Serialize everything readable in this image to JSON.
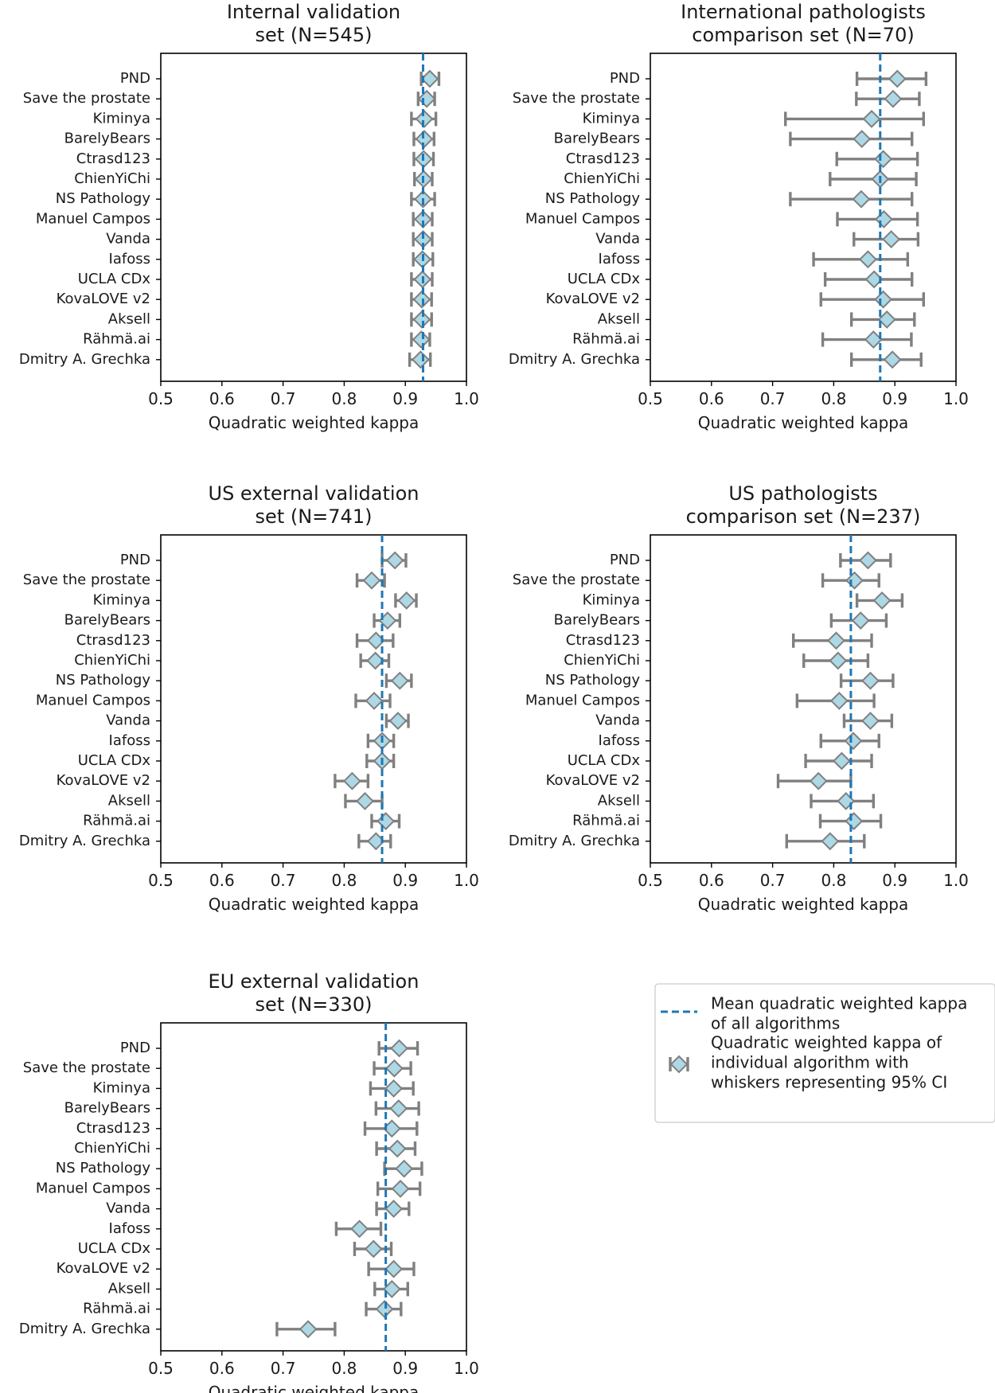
{
  "chart_data": [
    {
      "type": "forest",
      "title_lines": [
        "Internal validation",
        "set (N=545)"
      ],
      "xlabel": "Quadratic weighted kappa",
      "xlim": [
        0.5,
        1.0
      ],
      "xticks": [
        "0.5",
        "0.6",
        "0.7",
        "0.8",
        "0.9",
        "1.0"
      ],
      "mean": 0.929,
      "algorithms": [
        "PND",
        "Save the prostate",
        "Kiminya",
        "BarelyBears",
        "Ctrasd123",
        "ChienYiChi",
        "NS Pathology",
        "Manuel Campos",
        "Vanda",
        "Iafoss",
        "UCLA CDx",
        "KovaLOVE v2",
        "Aksell",
        "Rähmä.ai",
        "Dmitry A. Grechka"
      ],
      "estimates": [
        0.94,
        0.935,
        0.931,
        0.931,
        0.93,
        0.93,
        0.929,
        0.929,
        0.929,
        0.928,
        0.928,
        0.927,
        0.927,
        0.926,
        0.925
      ],
      "ci_low": [
        0.926,
        0.921,
        0.91,
        0.914,
        0.914,
        0.915,
        0.91,
        0.913,
        0.913,
        0.913,
        0.91,
        0.91,
        0.91,
        0.91,
        0.907
      ],
      "ci_high": [
        0.955,
        0.948,
        0.95,
        0.947,
        0.946,
        0.944,
        0.948,
        0.944,
        0.944,
        0.945,
        0.944,
        0.943,
        0.943,
        0.94,
        0.941
      ]
    },
    {
      "type": "forest",
      "title_lines": [
        "International pathologists",
        "comparison set (N=70)"
      ],
      "xlabel": "Quadratic weighted kappa",
      "xlim": [
        0.5,
        1.0
      ],
      "xticks": [
        "0.5",
        "0.6",
        "0.7",
        "0.8",
        "0.9",
        "1.0"
      ],
      "mean": 0.876,
      "algorithms": [
        "PND",
        "Save the prostate",
        "Kiminya",
        "BarelyBears",
        "Ctrasd123",
        "ChienYiChi",
        "NS Pathology",
        "Manuel Campos",
        "Vanda",
        "Iafoss",
        "UCLA CDx",
        "KovaLOVE v2",
        "Aksell",
        "Rähmä.ai",
        "Dmitry A. Grechka"
      ],
      "estimates": [
        0.904,
        0.897,
        0.862,
        0.846,
        0.881,
        0.876,
        0.845,
        0.882,
        0.894,
        0.856,
        0.866,
        0.881,
        0.887,
        0.865,
        0.896
      ],
      "ci_low": [
        0.838,
        0.837,
        0.721,
        0.729,
        0.805,
        0.794,
        0.729,
        0.806,
        0.833,
        0.767,
        0.786,
        0.779,
        0.829,
        0.782,
        0.829
      ],
      "ci_high": [
        0.951,
        0.94,
        0.947,
        0.928,
        0.937,
        0.935,
        0.928,
        0.937,
        0.938,
        0.921,
        0.928,
        0.947,
        0.932,
        0.927,
        0.943
      ]
    },
    {
      "type": "forest",
      "title_lines": [
        "US external validation",
        "set (N=741)"
      ],
      "xlabel": "Quadratic weighted kappa",
      "xlim": [
        0.5,
        1.0
      ],
      "xticks": [
        "0.5",
        "0.6",
        "0.7",
        "0.8",
        "0.9",
        "1.0"
      ],
      "mean": 0.862,
      "algorithms": [
        "PND",
        "Save the prostate",
        "Kiminya",
        "BarelyBears",
        "Ctrasd123",
        "ChienYiChi",
        "NS Pathology",
        "Manuel Campos",
        "Vanda",
        "Iafoss",
        "UCLA CDx",
        "KovaLOVE v2",
        "Aksell",
        "Rähmä.ai",
        "Dmitry A. Grechka"
      ],
      "estimates": [
        0.883,
        0.845,
        0.902,
        0.871,
        0.852,
        0.851,
        0.891,
        0.849,
        0.888,
        0.862,
        0.862,
        0.813,
        0.834,
        0.868,
        0.852
      ],
      "ci_low": [
        0.862,
        0.821,
        0.884,
        0.849,
        0.821,
        0.827,
        0.869,
        0.819,
        0.869,
        0.839,
        0.837,
        0.785,
        0.802,
        0.845,
        0.824
      ],
      "ci_high": [
        0.901,
        0.866,
        0.918,
        0.891,
        0.88,
        0.873,
        0.91,
        0.875,
        0.905,
        0.881,
        0.881,
        0.839,
        0.862,
        0.89,
        0.876
      ]
    },
    {
      "type": "forest",
      "title_lines": [
        "US pathologists",
        "comparison set (N=237)"
      ],
      "xlabel": "Quadratic weighted kappa",
      "xlim": [
        0.5,
        1.0
      ],
      "xticks": [
        "0.5",
        "0.6",
        "0.7",
        "0.8",
        "0.9",
        "1.0"
      ],
      "mean": 0.828,
      "algorithms": [
        "PND",
        "Save the prostate",
        "Kiminya",
        "BarelyBears",
        "Ctrasd123",
        "ChienYiChi",
        "NS Pathology",
        "Manuel Campos",
        "Vanda",
        "Iafoss",
        "UCLA CDx",
        "KovaLOVE v2",
        "Aksell",
        "Rähmä.ai",
        "Dmitry A. Grechka"
      ],
      "estimates": [
        0.856,
        0.834,
        0.879,
        0.844,
        0.804,
        0.807,
        0.86,
        0.809,
        0.86,
        0.832,
        0.813,
        0.775,
        0.82,
        0.833,
        0.794
      ],
      "ci_low": [
        0.811,
        0.782,
        0.838,
        0.796,
        0.734,
        0.751,
        0.812,
        0.74,
        0.817,
        0.779,
        0.754,
        0.709,
        0.763,
        0.778,
        0.723
      ],
      "ci_high": [
        0.893,
        0.874,
        0.912,
        0.886,
        0.862,
        0.856,
        0.897,
        0.866,
        0.895,
        0.874,
        0.862,
        0.828,
        0.865,
        0.877,
        0.85
      ]
    },
    {
      "type": "forest",
      "title_lines": [
        "EU external validation",
        "set (N=330)"
      ],
      "xlabel": "Quadratic weighted kappa",
      "xlim": [
        0.5,
        1.0
      ],
      "xticks": [
        "0.5",
        "0.6",
        "0.7",
        "0.8",
        "0.9",
        "1.0"
      ],
      "mean": 0.868,
      "algorithms": [
        "PND",
        "Save the prostate",
        "Kiminya",
        "BarelyBears",
        "Ctrasd123",
        "ChienYiChi",
        "NS Pathology",
        "Manuel Campos",
        "Vanda",
        "Iafoss",
        "UCLA CDx",
        "KovaLOVE v2",
        "Aksell",
        "Rähmä.ai",
        "Dmitry A. Grechka"
      ],
      "estimates": [
        0.89,
        0.882,
        0.881,
        0.889,
        0.878,
        0.887,
        0.898,
        0.892,
        0.881,
        0.825,
        0.848,
        0.881,
        0.878,
        0.866,
        0.741
      ],
      "ci_low": [
        0.857,
        0.849,
        0.843,
        0.852,
        0.834,
        0.853,
        0.866,
        0.855,
        0.853,
        0.787,
        0.817,
        0.84,
        0.85,
        0.836,
        0.69
      ],
      "ci_high": [
        0.92,
        0.909,
        0.913,
        0.922,
        0.919,
        0.916,
        0.927,
        0.924,
        0.906,
        0.86,
        0.877,
        0.914,
        0.904,
        0.893,
        0.785
      ]
    }
  ],
  "legend": {
    "mean_line_lines": [
      "Mean quadratic weighted kappa",
      "of all algorithms"
    ],
    "marker_lines": [
      "Quadratic weighted kappa of",
      "individual algorithm with",
      "whiskers representing 95% CI"
    ],
    "colors": {
      "marker_fill": "#add8e6",
      "marker_edge": "#808080",
      "mean_line": "#1f77b4"
    }
  }
}
